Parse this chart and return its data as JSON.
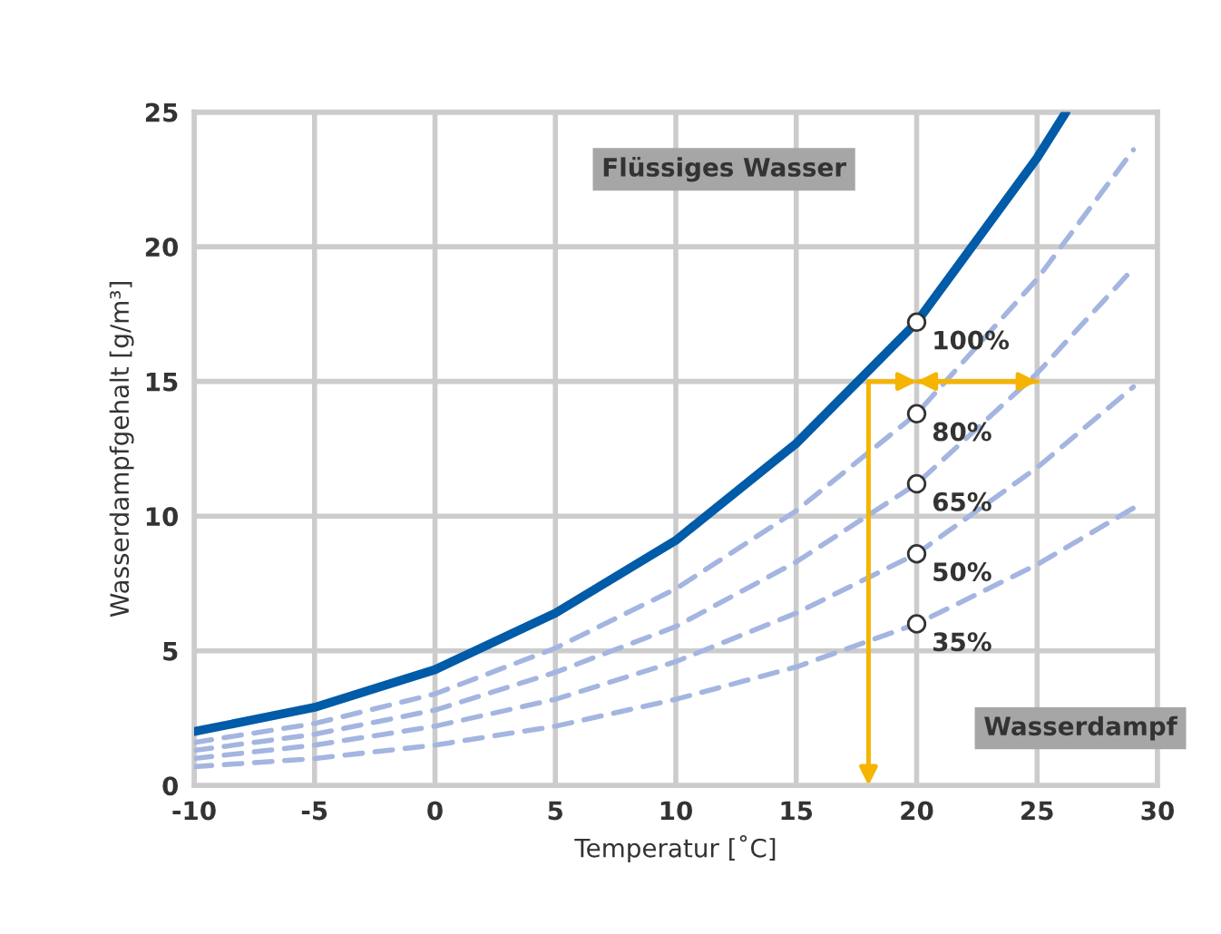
{
  "chart_data": {
    "type": "line",
    "xlabel": "Temperatur [˚C]",
    "ylabel": "Wasserdampfgehalt [g/m³]",
    "xlim": [
      -10,
      30
    ],
    "ylim": [
      0,
      25
    ],
    "xticks": [
      -10,
      -5,
      0,
      5,
      10,
      15,
      20,
      25,
      30
    ],
    "yticks": [
      0,
      5,
      10,
      15,
      20,
      25
    ],
    "grid": true,
    "marker": "none",
    "series": [
      {
        "type": "line",
        "color": "#005ba8",
        "line_style": "solid",
        "x": [
          -10,
          -5,
          0,
          5,
          10,
          15,
          20,
          25,
          26.2
        ],
        "values": [
          2.0,
          2.9,
          4.3,
          6.4,
          9.1,
          12.7,
          17.2,
          23.3,
          25.0
        ]
      },
      {
        "type": "line",
        "color": "#a3b5e0",
        "line_style": "dashed",
        "x": [
          -10,
          -5,
          0,
          5,
          10,
          15,
          20,
          25,
          29
        ],
        "values": [
          1.6,
          2.3,
          3.4,
          5.1,
          7.3,
          10.2,
          13.8,
          18.8,
          23.6
        ]
      },
      {
        "type": "line",
        "color": "#a3b5e0",
        "line_style": "dashed",
        "x": [
          -10,
          -5,
          0,
          5,
          10,
          15,
          20,
          25,
          29
        ],
        "values": [
          1.3,
          1.9,
          2.8,
          4.2,
          5.9,
          8.3,
          11.2,
          15.3,
          19.2
        ]
      },
      {
        "type": "line",
        "color": "#a3b5e0",
        "line_style": "dashed",
        "x": [
          -10,
          -5,
          0,
          5,
          10,
          15,
          20,
          25,
          29
        ],
        "values": [
          1.0,
          1.5,
          2.2,
          3.2,
          4.6,
          6.4,
          8.6,
          11.8,
          14.8
        ]
      },
      {
        "type": "line",
        "color": "#a3b5e0",
        "line_style": "dashed",
        "x": [
          -10,
          -5,
          0,
          5,
          10,
          15,
          20,
          25,
          29
        ],
        "values": [
          0.7,
          1.0,
          1.5,
          2.2,
          3.2,
          4.4,
          6.0,
          8.2,
          10.3
        ]
      },
      {
        "type": "scatter",
        "color": "#ffffff",
        "marker": "circle",
        "x": [
          20,
          20,
          20,
          20,
          20
        ],
        "values": [
          17.2,
          13.8,
          11.2,
          8.6,
          6.0
        ]
      }
    ],
    "annotations": [
      "100%",
      "80%",
      "65%",
      "50%",
      "35%",
      "Flüssiges Wasser",
      "Wasserdampf"
    ]
  }
}
